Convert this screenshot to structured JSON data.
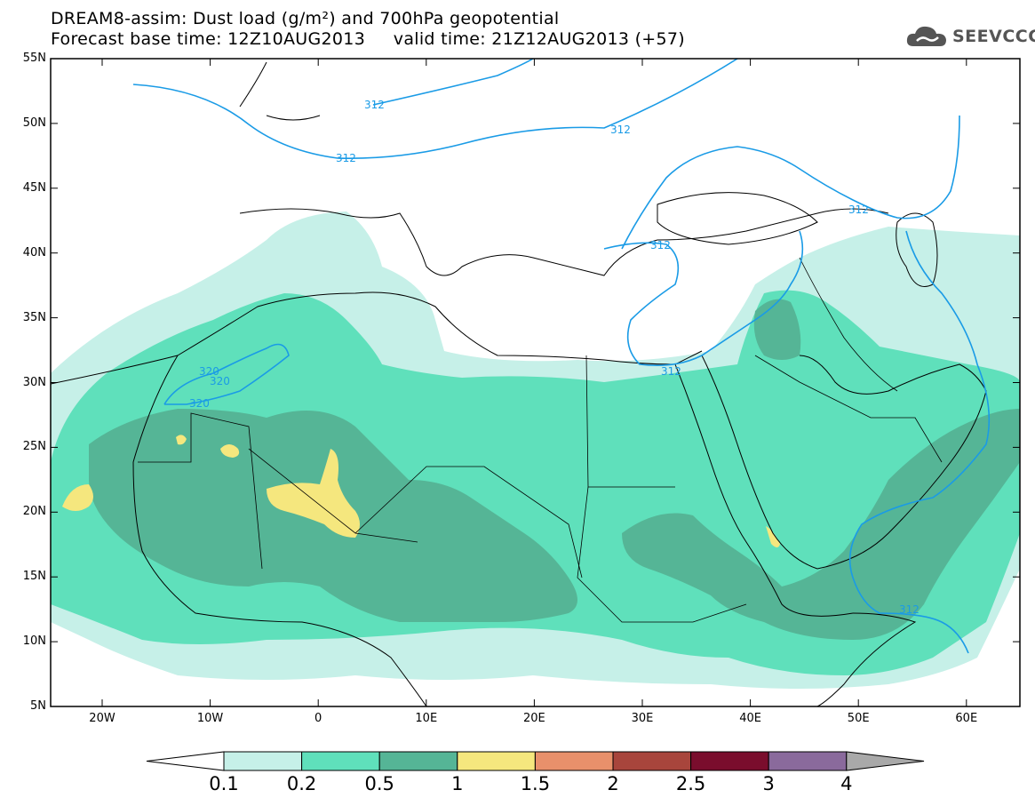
{
  "header": {
    "title_line1": "DREAM8-assim: Dust load (g/m²) and 700hPa geopotential",
    "title_line2": "Forecast base time: 12Z10AUG2013     valid time: 21Z12AUG2013 (+57)"
  },
  "logo": {
    "text": "SEEVCCC",
    "icon": "cloud-icon"
  },
  "map": {
    "x_ticks": [
      "20W",
      "10W",
      "0",
      "10E",
      "20E",
      "30E",
      "40E",
      "50E",
      "60E"
    ],
    "y_ticks": [
      "55N",
      "50N",
      "45N",
      "40N",
      "35N",
      "30N",
      "25N",
      "20N",
      "15N",
      "10N",
      "5N"
    ],
    "contour_labels": [
      "312",
      "312",
      "312",
      "312",
      "312",
      "312",
      "312",
      "320",
      "320",
      "320"
    ]
  },
  "colorbar": {
    "labels": [
      "0.1",
      "0.2",
      "0.5",
      "1",
      "1.5",
      "2",
      "2.5",
      "3",
      "4"
    ],
    "colors": [
      "#c6f0e8",
      "#5fe0bb",
      "#55b596",
      "#f5e77e",
      "#e8906b",
      "#a8453c",
      "#7a0d2d",
      "#8a6a9c"
    ],
    "under_color": "#ffffff",
    "over_color": "#a9a9a9"
  }
}
